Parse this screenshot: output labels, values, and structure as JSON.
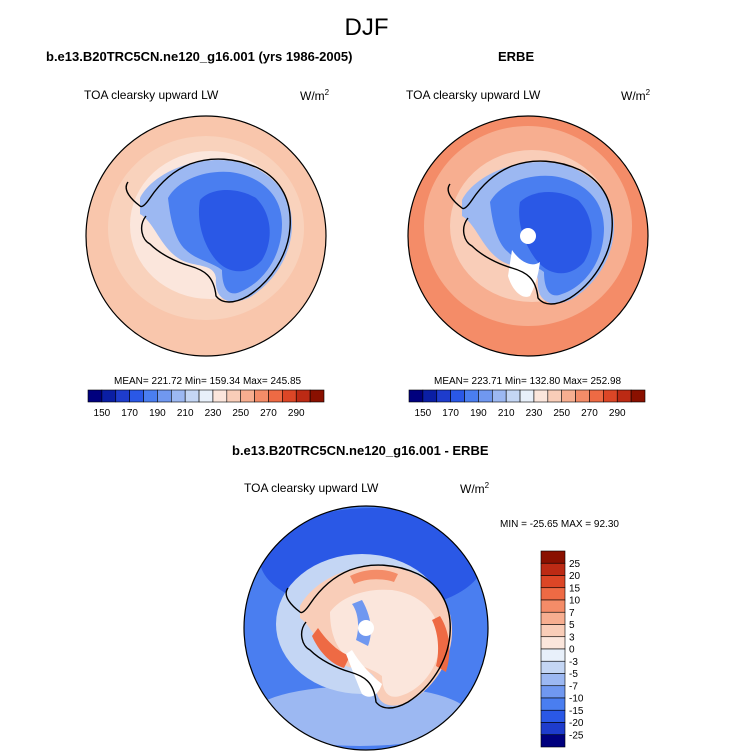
{
  "figure": {
    "season": "DJF",
    "panels": [
      {
        "title": "b.e13.B20TRC5CN.ne120_g16.001 (yrs 1986-2005)",
        "variable": "TOA clearsky upward LW",
        "units_base": "W/m",
        "units_exp": "2",
        "stats": "MEAN= 221.72  Min= 159.34  Max= 245.85"
      },
      {
        "title": "ERBE",
        "variable": "TOA clearsky upward LW",
        "units_base": "W/m",
        "units_exp": "2",
        "stats": "MEAN= 223.71  Min= 132.80  Max= 252.98"
      },
      {
        "title": "b.e13.B20TRC5CN.ne120_g16.001 - ERBE",
        "variable": "TOA clearsky upward LW",
        "units_base": "W/m",
        "units_exp": "2",
        "stats": "MIN = -25.65 MAX =  92.30"
      }
    ],
    "colorbar_abs": {
      "labels": [
        "150",
        "170",
        "190",
        "210",
        "230",
        "250",
        "270",
        "290"
      ],
      "colors": [
        "#00007e",
        "#0a1ea4",
        "#1e3ccc",
        "#2a58e6",
        "#4a7ef0",
        "#7098f0",
        "#9cb8f2",
        "#c4d6f4",
        "#e8f0fa",
        "#fbe6dc",
        "#f9cdb8",
        "#f7ae90",
        "#f48c68",
        "#ee6a44",
        "#dc4626",
        "#bc2a14",
        "#8a1000"
      ]
    },
    "colorbar_diff": {
      "labels": [
        "25",
        "20",
        "15",
        "10",
        "7",
        "5",
        "3",
        "0",
        "-3",
        "-5",
        "-7",
        "-10",
        "-15",
        "-20",
        "-25"
      ],
      "colors": [
        "#8a1000",
        "#bc2a14",
        "#dc4626",
        "#ee6a44",
        "#f48c68",
        "#f7ae90",
        "#f9cdb8",
        "#fbe6dc",
        "#e8f0fa",
        "#c4d6f4",
        "#9cb8f2",
        "#7098f0",
        "#4a7ef0",
        "#2a58e6",
        "#1e3ccc",
        "#00007e"
      ]
    }
  }
}
